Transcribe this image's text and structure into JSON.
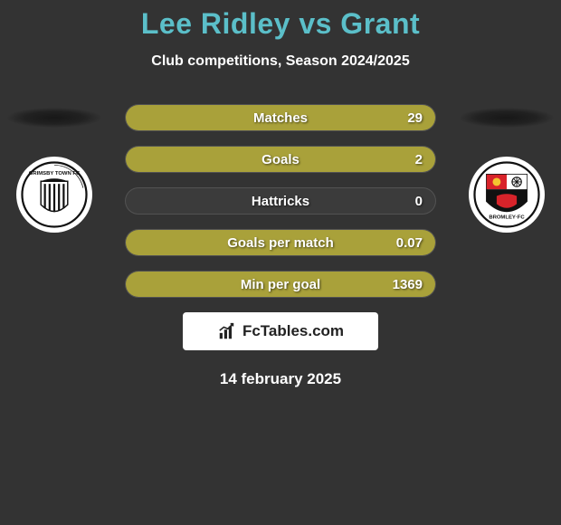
{
  "title": "Lee Ridley vs Grant",
  "subtitle": "Club competitions, Season 2024/2025",
  "title_color": "#5bbfc9",
  "background_color": "#333333",
  "stats": [
    {
      "label": "Matches",
      "value": "29",
      "fill_pct": 100,
      "fill_color": "#a9a13a"
    },
    {
      "label": "Goals",
      "value": "2",
      "fill_pct": 100,
      "fill_color": "#a9a13a"
    },
    {
      "label": "Hattricks",
      "value": "0",
      "fill_pct": 0,
      "fill_color": "#a9a13a"
    },
    {
      "label": "Goals per match",
      "value": "0.07",
      "fill_pct": 100,
      "fill_color": "#a9a13a"
    },
    {
      "label": "Min per goal",
      "value": "1369",
      "fill_pct": 100,
      "fill_color": "#a9a13a"
    }
  ],
  "bar_empty_color": "#3b3b3b",
  "brand": "FcTables.com",
  "date": "14 february 2025",
  "left_badge_name": "grimsby-town-crest",
  "right_badge_name": "bromley-fc-crest"
}
